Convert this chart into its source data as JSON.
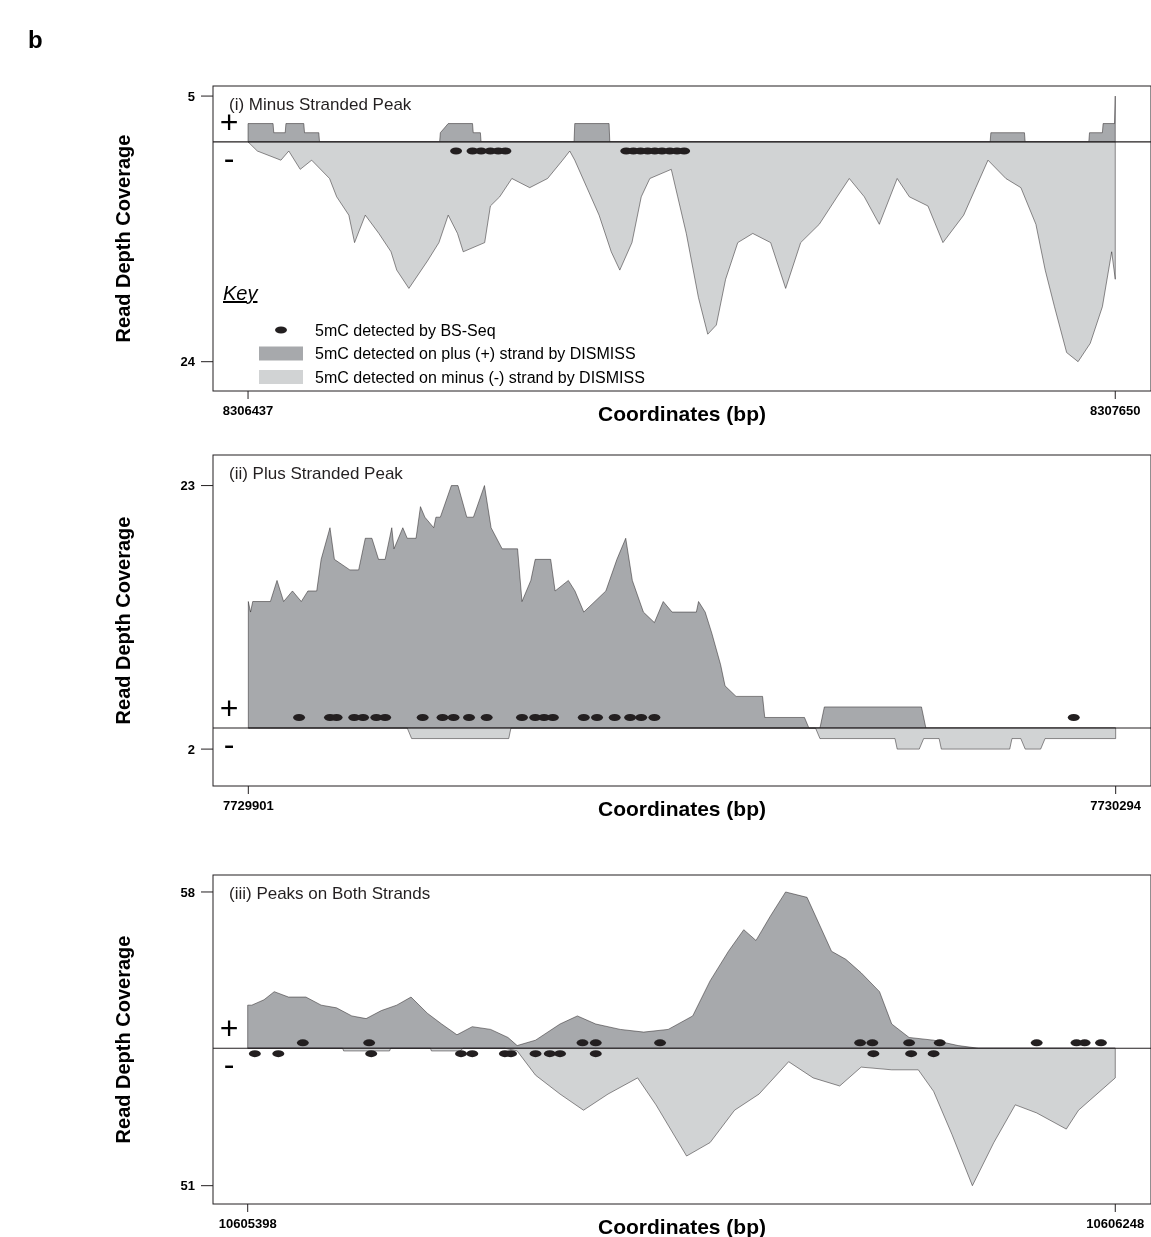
{
  "chart_data": [
    {
      "type": "area",
      "title": "(i) Minus Stranded Peak",
      "xlabel": "Coordinates (bp)",
      "ylabel": "Read Depth Coverage",
      "xlim": [
        8306388,
        8307700
      ],
      "xticks": [
        8306437,
        8307650
      ],
      "ylim": [
        -27.2,
        6.1
      ],
      "yticks": [
        5,
        {
          "value": -24,
          "label": "24"
        }
      ],
      "legend": "bottom left",
      "legend_title": "Key",
      "annotations": [
        "b",
        "+",
        "-"
      ],
      "series": [
        {
          "name": "5mC detected by BS-Seq",
          "type": "scatter",
          "marker": "circle",
          "color": "#231f20",
          "x": [
            8306728,
            8306751,
            8306763,
            8306776,
            8306787,
            8306797,
            8306966,
            8306976,
            8306986,
            8306996,
            8307006,
            8307016,
            8307027,
            8307037,
            8307047
          ],
          "values": [
            -1,
            -1,
            -1,
            -1,
            -1,
            -1,
            -1,
            -1,
            -1,
            -1,
            -1,
            -1,
            -1,
            -1,
            -1
          ]
        },
        {
          "name": "5mC detected on plus (+) strand by DISMISS",
          "type": "area",
          "color": "#a7a9ac",
          "x": [
            8306437,
            8306472,
            8306473,
            8306489,
            8306490,
            8306515,
            8306516,
            8306536,
            8306537,
            8306705,
            8306706,
            8306717,
            8306751,
            8306752,
            8306762,
            8306763,
            8306893,
            8306894,
            8306942,
            8306943,
            8307475,
            8307476,
            8307523,
            8307524,
            8307613,
            8307614,
            8307632,
            8307633,
            8307649,
            8307650
          ],
          "values": [
            2,
            2,
            1,
            1,
            2,
            2,
            1,
            1,
            0,
            0,
            1,
            2,
            2,
            1,
            1,
            0,
            0,
            2,
            2,
            0,
            0,
            1,
            1,
            0,
            0,
            1,
            1,
            2,
            2,
            5
          ]
        },
        {
          "name": "5mC detected on minus (-) strand by DISMISS",
          "type": "area",
          "color": "#d1d3d4",
          "x": [
            8306437,
            8306450,
            8306483,
            8306494,
            8306510,
            8306526,
            8306551,
            8306561,
            8306578,
            8306586,
            8306601,
            8306620,
            8306637,
            8306645,
            8306662,
            8306688,
            8306704,
            8306717,
            8306730,
            8306738,
            8306768,
            8306776,
            8306789,
            8306806,
            8306831,
            8306856,
            8306877,
            8306887,
            8306894,
            8306911,
            8306928,
            8306945,
            8306957,
            8306974,
            8306987,
            8306999,
            8307029,
            8307038,
            8307050,
            8307067,
            8307080,
            8307092,
            8307105,
            8307122,
            8307143,
            8307168,
            8307189,
            8307210,
            8307236,
            8307261,
            8307278,
            8307299,
            8307320,
            8307345,
            8307362,
            8307388,
            8307409,
            8307438,
            8307455,
            8307472,
            8307497,
            8307518,
            8307539,
            8307552,
            8307565,
            8307582,
            8307598,
            8307615,
            8307632,
            8307645,
            8307650
          ],
          "values": [
            0,
            -1,
            -2,
            -1,
            -3,
            -2,
            -4,
            -6,
            -8,
            -11,
            -8,
            -10,
            -12,
            -14,
            -16,
            -13,
            -11,
            -8,
            -10,
            -12,
            -11,
            -7,
            -6,
            -4,
            -5,
            -4,
            -2,
            -1,
            -2,
            -5,
            -8,
            -12,
            -14,
            -11,
            -6,
            -4,
            -3,
            -6,
            -10,
            -17,
            -21,
            -20,
            -15,
            -11,
            -10,
            -11,
            -16,
            -11,
            -9,
            -6,
            -4,
            -6,
            -9,
            -4,
            -6,
            -7,
            -11,
            -8,
            -5,
            -2,
            -4,
            -5,
            -9,
            -14,
            -18,
            -23,
            -24,
            -22,
            -18,
            -12,
            -15
          ]
        }
      ]
    },
    {
      "type": "area",
      "title": "(ii) Plus Stranded Peak",
      "xlabel": "Coordinates (bp)",
      "ylabel": "Read Depth Coverage",
      "xlim": [
        7729885,
        7730310
      ],
      "xticks": [
        7729901,
        7730294
      ],
      "ylim": [
        -5.5,
        25.9
      ],
      "yticks": [
        23,
        {
          "value": -2,
          "label": "2"
        }
      ],
      "annotations": [
        "+",
        "-"
      ],
      "series": [
        {
          "type": "scatter",
          "marker": "circle",
          "color": "#231f20",
          "x": [
            7729924,
            7729938,
            7729941,
            7729949,
            7729953,
            7729959,
            7729963,
            7729980,
            7729989,
            7729994,
            7730001,
            7730009,
            7730025,
            7730031,
            7730035,
            7730039,
            7730053,
            7730059,
            7730067,
            7730074,
            7730079,
            7730085,
            7730275
          ],
          "values": [
            1,
            1,
            1,
            1,
            1,
            1,
            1,
            1,
            1,
            1,
            1,
            1,
            1,
            1,
            1,
            1,
            1,
            1,
            1,
            1,
            1,
            1,
            1
          ]
        },
        {
          "type": "area",
          "color": "#a7a9ac",
          "x": [
            7729901,
            7729902,
            7729903,
            7729911,
            7729914,
            7729917,
            7729921,
            7729925,
            7729928,
            7729932,
            7729934,
            7729938,
            7729940,
            7729947,
            7729951,
            7729954,
            7729957,
            7729960,
            7729963,
            7729966,
            7729967,
            7729971,
            7729973,
            7729977,
            7729979,
            7729981,
            7729985,
            7729986,
            7729988,
            7729993,
            7729996,
            7730000,
            7730003,
            7730008,
            7730011,
            7730016,
            7730023,
            7730025,
            7730029,
            7730031,
            7730038,
            7730040,
            7730046,
            7730049,
            7730053,
            7730063,
            7730068,
            7730072,
            7730075,
            7730080,
            7730085,
            7730089,
            7730093,
            7730104,
            7730105,
            7730108,
            7730111,
            7730115,
            7730117,
            7730122,
            7730134,
            7730135,
            7730153,
            7730155,
            7730160,
            7730162,
            7730206,
            7730208,
            7730294
          ],
          "values": [
            12,
            11,
            12,
            12,
            14,
            12,
            13,
            12,
            13,
            13,
            16,
            19,
            16,
            15,
            15,
            18,
            18,
            16,
            16,
            19,
            17,
            19,
            18,
            18,
            21,
            20,
            19,
            20,
            20,
            23,
            23,
            20,
            20,
            23,
            19,
            17,
            17,
            12,
            14,
            16,
            16,
            13,
            14,
            13,
            11,
            13,
            16,
            18,
            14,
            11,
            10,
            12,
            11,
            11,
            12,
            11,
            9,
            6,
            4,
            3,
            3,
            1,
            1,
            0,
            0,
            2,
            2,
            0,
            0
          ]
        },
        {
          "type": "area",
          "color": "#d1d3d4",
          "x": [
            7729901,
            7729973,
            7729975,
            7730019,
            7730020,
            7730158,
            7730160,
            7730194,
            7730195,
            7730205,
            7730207,
            7730214,
            7730215,
            7730246,
            7730247,
            7730251,
            7730253,
            7730260,
            7730262,
            7730294
          ],
          "values": [
            0,
            0,
            -1,
            -1,
            0,
            0,
            -1,
            -1,
            -2,
            -2,
            -1,
            -1,
            -2,
            -2,
            -1,
            -1,
            -2,
            -2,
            -1,
            -1
          ]
        }
      ]
    },
    {
      "type": "area",
      "title": "(iii) Peaks on Both Strands",
      "xlabel": "Coordinates (bp)",
      "ylabel": "Read Depth Coverage",
      "xlim": [
        10605364,
        10606283
      ],
      "xticks": [
        10605398,
        10606248
      ],
      "ylim": [
        -57.8,
        64.3
      ],
      "yticks": [
        58,
        {
          "value": -51,
          "label": "51"
        }
      ],
      "annotations": [
        "+",
        "-"
      ],
      "series": [
        {
          "type": "scatter",
          "marker": "circle",
          "color": "#231f20",
          "x": [
            10605452,
            10605517,
            10605726,
            10605739,
            10605802,
            10605998,
            10606010,
            10606046,
            10606076,
            10606171,
            10606210,
            10606218,
            10606234
          ],
          "values": [
            2,
            2,
            2,
            2,
            2,
            2,
            2,
            2,
            2,
            2,
            2,
            2,
            2
          ]
        },
        {
          "type": "scatter",
          "marker": "circle",
          "color": "#231f20",
          "x": [
            10605405,
            10605428,
            10605519,
            10605607,
            10605618,
            10605650,
            10605656,
            10605680,
            10605694,
            10605704,
            10605739,
            10606011,
            10606048,
            10606070
          ],
          "values": [
            -2,
            -2,
            -2,
            -2,
            -2,
            -2,
            -2,
            -2,
            -2,
            -2,
            -2,
            -2,
            -2,
            -2
          ]
        },
        {
          "type": "area",
          "color": "#a7a9ac",
          "x": [
            10605398,
            10605402,
            10605414,
            10605424,
            10605438,
            10605455,
            10605470,
            10605485,
            10605500,
            10605514,
            10605529,
            10605544,
            10605558,
            10605574,
            10605588,
            10605603,
            10605618,
            10605636,
            10605653,
            10605662,
            10605680,
            10605704,
            10605721,
            10605739,
            10605763,
            10605786,
            10605810,
            10605834,
            10605851,
            10605869,
            10605884,
            10605896,
            10605910,
            10605925,
            10605946,
            10605952,
            10605970,
            10605984,
            10605999,
            10606017,
            10606029,
            10606046,
            10606070,
            10606094,
            10606114,
            10606248
          ],
          "values": [
            16,
            16,
            18,
            21,
            19,
            19,
            16,
            15,
            12,
            11,
            14,
            16,
            19,
            13,
            9,
            5,
            8,
            7,
            4,
            1,
            3,
            9,
            12,
            9,
            7,
            6,
            7,
            12,
            25,
            36,
            44,
            40,
            49,
            58,
            56,
            51,
            36,
            33,
            28,
            21,
            9,
            4,
            3,
            1,
            0,
            0
          ]
        },
        {
          "type": "area",
          "color": "#d1d3d4",
          "x": [
            10605398,
            10605491,
            10605492,
            10605537,
            10605538,
            10605577,
            10605578,
            10605606,
            10605609,
            10605650,
            10605662,
            10605680,
            10605704,
            10605727,
            10605751,
            10605780,
            10605798,
            10605828,
            10605851,
            10605875,
            10605899,
            10605928,
            10605952,
            10605978,
            10605999,
            10606029,
            10606055,
            10606070,
            10606088,
            10606108,
            10606129,
            10606150,
            10606171,
            10606200,
            10606212,
            10606236,
            10606248
          ],
          "values": [
            0,
            0,
            -1,
            -1,
            0,
            0,
            -1,
            -1,
            0,
            0,
            -1,
            -10,
            -17,
            -23,
            -17,
            -11,
            -21,
            -40,
            -35,
            -23,
            -17,
            -5,
            -11,
            -14,
            -7,
            -8,
            -8,
            -16,
            -32,
            -51,
            -35,
            -21,
            -24,
            -30,
            -23,
            -15,
            -11
          ]
        }
      ]
    }
  ]
}
